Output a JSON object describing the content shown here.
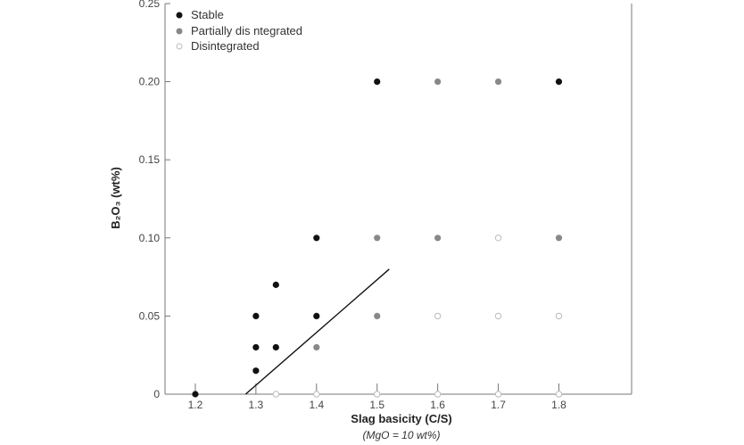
{
  "chart_data": {
    "type": "scatter",
    "xlabel": "Slag basicity (C/S)",
    "xlabel_sub": "(MgO = 10 wt%)",
    "ylabel": "B₂O₃ (wt%)",
    "xlim": [
      1.15,
      1.92
    ],
    "ylim": [
      0,
      0.25
    ],
    "x_ticks": [
      1.2,
      1.3,
      1.4,
      1.5,
      1.6,
      1.7,
      1.8
    ],
    "x_tick_labels": [
      "1.2",
      "1.3",
      "1.4",
      "1.5",
      "1.6",
      "1.7",
      "1.8"
    ],
    "y_ticks": [
      0,
      0.05,
      0.1,
      0.15,
      0.2,
      0.25
    ],
    "y_tick_labels": [
      "0",
      "0.05",
      "0.10",
      "0.15",
      "0.20",
      "0.25"
    ],
    "legend_position": "top-left",
    "grid": false,
    "series": [
      {
        "name": "Stable",
        "color": "#111111",
        "marker": "filled",
        "points": [
          [
            1.2,
            0
          ],
          [
            1.3,
            0.015
          ],
          [
            1.3,
            0.03
          ],
          [
            1.3,
            0.05
          ],
          [
            1.333,
            0.03
          ],
          [
            1.333,
            0.07
          ],
          [
            1.4,
            0.05
          ],
          [
            1.4,
            0.1
          ],
          [
            1.5,
            0.2
          ],
          [
            1.8,
            0.2
          ]
        ]
      },
      {
        "name": "Partially dis ntegrated",
        "color": "#888888",
        "marker": "filled",
        "points": [
          [
            1.4,
            0.03
          ],
          [
            1.5,
            0.05
          ],
          [
            1.5,
            0.1
          ],
          [
            1.6,
            0.1
          ],
          [
            1.6,
            0.2
          ],
          [
            1.7,
            0.2
          ],
          [
            1.8,
            0.1
          ]
        ]
      },
      {
        "name": "Disintegrated",
        "color": "#bbbbbb",
        "marker": "open",
        "points": [
          [
            1.333,
            0
          ],
          [
            1.4,
            0
          ],
          [
            1.5,
            0
          ],
          [
            1.6,
            0
          ],
          [
            1.7,
            0
          ],
          [
            1.8,
            0
          ],
          [
            1.6,
            0.05
          ],
          [
            1.7,
            0.05
          ],
          [
            1.8,
            0.05
          ],
          [
            1.7,
            0.1
          ]
        ]
      }
    ],
    "boundary_line": {
      "points": [
        [
          1.283,
          0
        ],
        [
          1.52,
          0.08
        ]
      ],
      "color": "#111111"
    }
  }
}
